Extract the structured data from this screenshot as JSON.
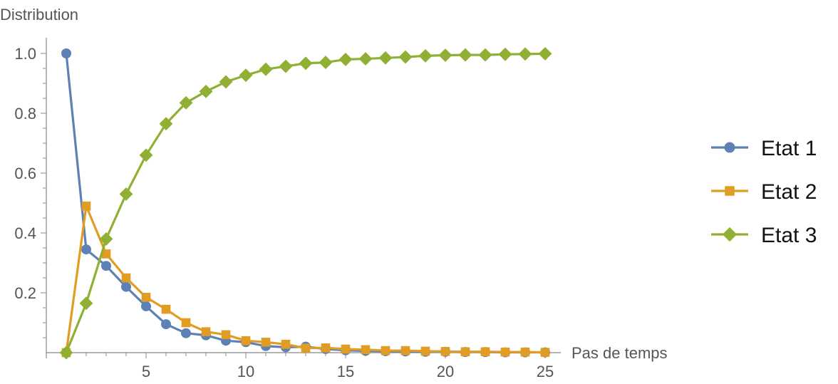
{
  "chart_data": {
    "type": "line",
    "ylabel": "Distribution",
    "xlabel": "Pas de temps",
    "xlim": [
      0,
      25.5
    ],
    "ylim": [
      0,
      1.0
    ],
    "x_ticks": [
      5,
      10,
      15,
      20,
      25
    ],
    "x_tick_labels": [
      "5",
      "10",
      "15",
      "20",
      "25"
    ],
    "y_ticks": [
      0.2,
      0.4,
      0.6,
      0.8,
      1.0
    ],
    "y_tick_labels": [
      "0.2",
      "0.4",
      "0.6",
      "0.8",
      "1.0"
    ],
    "grid": false,
    "legend_position": "right",
    "x": [
      1,
      2,
      3,
      4,
      5,
      6,
      7,
      8,
      9,
      10,
      11,
      12,
      13,
      14,
      15,
      16,
      17,
      18,
      19,
      20,
      21,
      22,
      23,
      24,
      25
    ],
    "series": [
      {
        "name": "Etat 1",
        "color": "#5E81B5",
        "marker": "circle",
        "values": [
          1.0,
          0.345,
          0.29,
          0.22,
          0.155,
          0.095,
          0.065,
          0.058,
          0.04,
          0.035,
          0.022,
          0.018,
          0.02,
          0.012,
          0.008,
          0.006,
          0.005,
          0.004,
          0.003,
          0.003,
          0.002,
          0.002,
          0.001,
          0.001,
          0.001
        ]
      },
      {
        "name": "Etat 2",
        "color": "#E19C24",
        "marker": "square",
        "values": [
          0.0,
          0.49,
          0.33,
          0.25,
          0.185,
          0.145,
          0.1,
          0.07,
          0.06,
          0.04,
          0.035,
          0.028,
          0.015,
          0.016,
          0.012,
          0.01,
          0.007,
          0.007,
          0.005,
          0.004,
          0.003,
          0.003,
          0.002,
          0.002,
          0.001
        ]
      },
      {
        "name": "Etat 3",
        "color": "#8FB032",
        "marker": "diamond",
        "values": [
          0.0,
          0.165,
          0.38,
          0.53,
          0.66,
          0.765,
          0.835,
          0.873,
          0.905,
          0.927,
          0.947,
          0.957,
          0.967,
          0.97,
          0.98,
          0.982,
          0.985,
          0.988,
          0.992,
          0.994,
          0.995,
          0.995,
          0.997,
          0.998,
          0.999
        ]
      }
    ]
  }
}
